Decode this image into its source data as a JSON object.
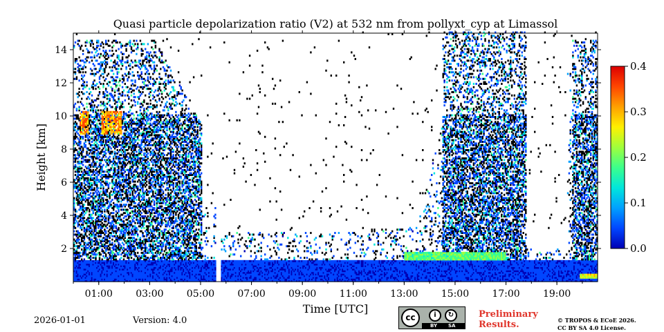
{
  "title": "Quasi particle depolarization ratio (V2) at 532 nm from pollyxt_cyp at Limassol",
  "footer": {
    "date": "2026-01-01",
    "version": "Version: 4.0",
    "preliminary_line1": "Preliminary",
    "preliminary_line2": "Results.",
    "copyright_line1": "© TROPOS & ECoE 2026.",
    "copyright_line2": "CC BY SA 4.0 License.",
    "license_badge": {
      "cc": "cc",
      "by": "BY",
      "sa": "SA",
      "by_icon": "i",
      "sa_icon": "↻"
    }
  },
  "colors": {
    "accent_red": "#e0352b",
    "colormap": [
      "#0000b4",
      "#0046ff",
      "#00a0ff",
      "#00e6dc",
      "#3cff8c",
      "#a0ff3c",
      "#fff000",
      "#ffa000",
      "#ff4600",
      "#dc0000"
    ]
  },
  "chart_data": {
    "type": "heatmap",
    "title": "Quasi particle depolarization ratio (V2) at 532 nm from pollyxt_cyp at Limassol",
    "xlabel": "Time [UTC]",
    "ylabel": "Height [km]",
    "x_unit": "hours UTC",
    "xlim": [
      0.0,
      20.6
    ],
    "ylim": [
      0.0,
      15.0
    ],
    "xticks": [
      1,
      3,
      5,
      7,
      9,
      11,
      13,
      15,
      17,
      19
    ],
    "xticklabels": [
      "01:00",
      "03:00",
      "05:00",
      "07:00",
      "09:00",
      "11:00",
      "13:00",
      "15:00",
      "17:00",
      "19:00"
    ],
    "yticks": [
      2,
      4,
      6,
      8,
      10,
      12,
      14
    ],
    "yticklabels": [
      "2",
      "4",
      "6",
      "8",
      "10",
      "12",
      "14"
    ],
    "colorbar": {
      "range": [
        0.0,
        0.4
      ],
      "ticks": [
        0.0,
        0.1,
        0.2,
        0.3,
        0.4
      ],
      "ticklabels": [
        "0.0",
        "0.1",
        "0.2",
        "0.3",
        "0.4"
      ]
    },
    "data_gaps_hours": [
      [
        5.58,
        5.78
      ]
    ],
    "features": [
      {
        "name": "boundary-layer aerosol",
        "x_range": [
          0.0,
          20.6
        ],
        "height_km": [
          0.0,
          1.5
        ],
        "depol_ratio": 0.03
      },
      {
        "name": "morning cloud/aerosol column",
        "x_range": [
          0.0,
          5.0
        ],
        "height_km": [
          1.5,
          14.5
        ],
        "depol_ratio": 0.05
      },
      {
        "name": "ice cloud patches",
        "x_range": [
          0.2,
          2.0
        ],
        "height_km": [
          8.8,
          10.2
        ],
        "depol_ratio": 0.33
      },
      {
        "name": "afternoon cloud column",
        "x_range": [
          14.5,
          17.8
        ],
        "height_km": [
          1.5,
          15.0
        ],
        "depol_ratio": 0.05
      },
      {
        "name": "depolarizing layer near top of boundary layer",
        "x_range": [
          13.0,
          17.0
        ],
        "height_km": [
          1.3,
          1.7
        ],
        "depol_ratio": 0.2
      },
      {
        "name": "late evening columns",
        "x_range": [
          19.4,
          20.6
        ],
        "height_km": [
          1.5,
          14.5
        ],
        "depol_ratio": 0.04
      },
      {
        "name": "surface dust layer",
        "x_range": [
          19.8,
          20.6
        ],
        "height_km": [
          0.1,
          0.5
        ],
        "depol_ratio": 0.25
      }
    ]
  }
}
